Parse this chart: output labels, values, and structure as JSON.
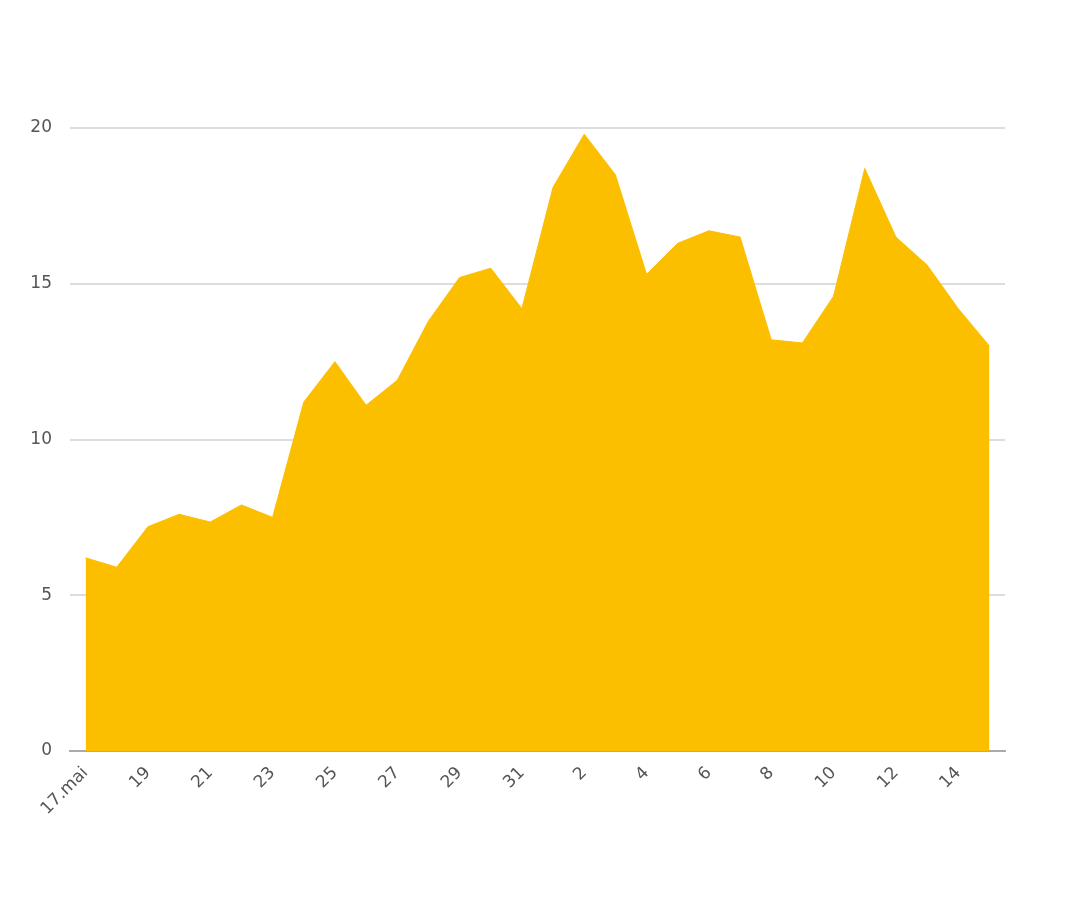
{
  "chart_data": {
    "type": "area",
    "categories": [
      "17.mai",
      null,
      "19",
      null,
      "21",
      null,
      "23",
      null,
      "25",
      null,
      "27",
      null,
      "29",
      null,
      "31",
      null,
      "2",
      null,
      "4",
      null,
      "6",
      null,
      "8",
      null,
      "10",
      null,
      "12",
      null,
      "14",
      null
    ],
    "values": [
      6.2,
      5.9,
      7.2,
      7.6,
      7.35,
      7.9,
      7.5,
      11.2,
      12.5,
      11.1,
      11.9,
      13.8,
      15.2,
      15.5,
      14.2,
      18.1,
      19.8,
      18.5,
      15.3,
      16.3,
      16.7,
      16.5,
      13.2,
      13.1,
      14.6,
      18.7,
      16.5,
      15.6,
      14.2,
      13.0
    ],
    "color": "#fcbf00",
    "ylim": [
      0,
      20
    ],
    "yticks": [
      0,
      5,
      10,
      15,
      20
    ],
    "grid": "y"
  }
}
